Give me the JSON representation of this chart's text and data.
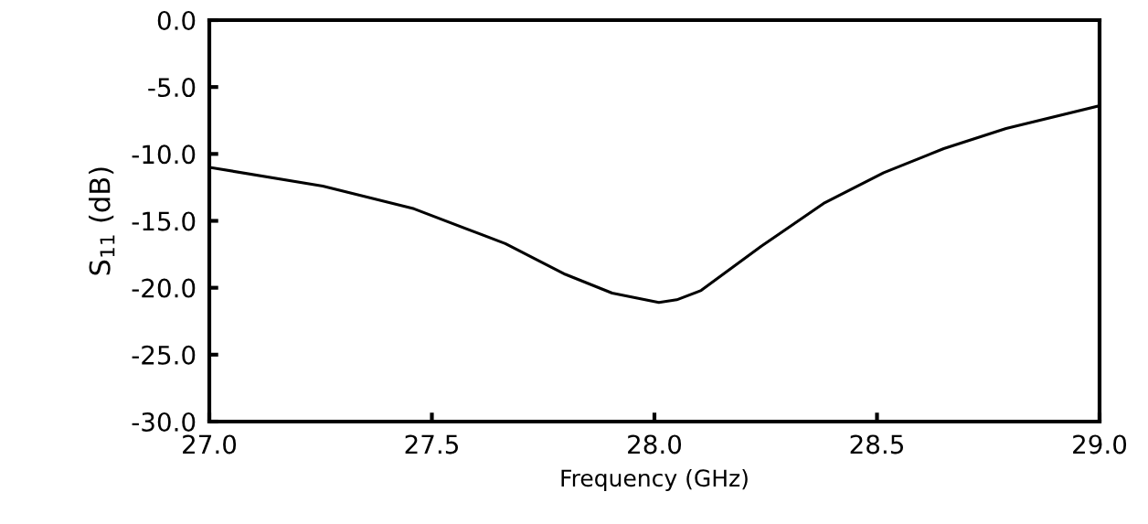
{
  "chart_data": {
    "type": "line",
    "xlabel": "Frequency (GHz)",
    "ylabel": "S$_{11}$ (dB)",
    "x": [
      27.0,
      27.255,
      27.46,
      27.665,
      27.8,
      27.905,
      28.01,
      28.05,
      28.105,
      28.24,
      28.38,
      28.515,
      28.65,
      28.79,
      29.0
    ],
    "series": [
      {
        "color": "#000000",
        "values": [
          -11.0,
          -12.4,
          -14.1,
          -16.7,
          -19.0,
          -20.4,
          -21.1,
          -20.9,
          -20.2,
          -16.9,
          -13.7,
          -11.4,
          -9.6,
          -8.1,
          -6.4
        ]
      }
    ],
    "xlim": [
      27.0,
      29.0
    ],
    "ylim": [
      -30.0,
      0.0
    ],
    "xticks": [
      {
        "value": 27.0,
        "label": "27.0"
      },
      {
        "value": 27.5,
        "label": "27.5"
      },
      {
        "value": 28.0,
        "label": "28.0"
      },
      {
        "value": 28.5,
        "label": "28.5"
      },
      {
        "value": 29.0,
        "label": "29.0"
      }
    ],
    "yticks": [
      {
        "value": -30.0,
        "label": "-30.0"
      },
      {
        "value": -25.0,
        "label": "-25.0"
      },
      {
        "value": -20.0,
        "label": "-20.0"
      },
      {
        "value": -15.0,
        "label": "-15.0"
      },
      {
        "value": -10.0,
        "label": "-10.0"
      },
      {
        "value": -5.0,
        "label": "-5.0"
      },
      {
        "value": 0.0,
        "label": "0.0"
      }
    ],
    "grid": false,
    "legend": false,
    "marker": "none",
    "line_style": "solid"
  }
}
